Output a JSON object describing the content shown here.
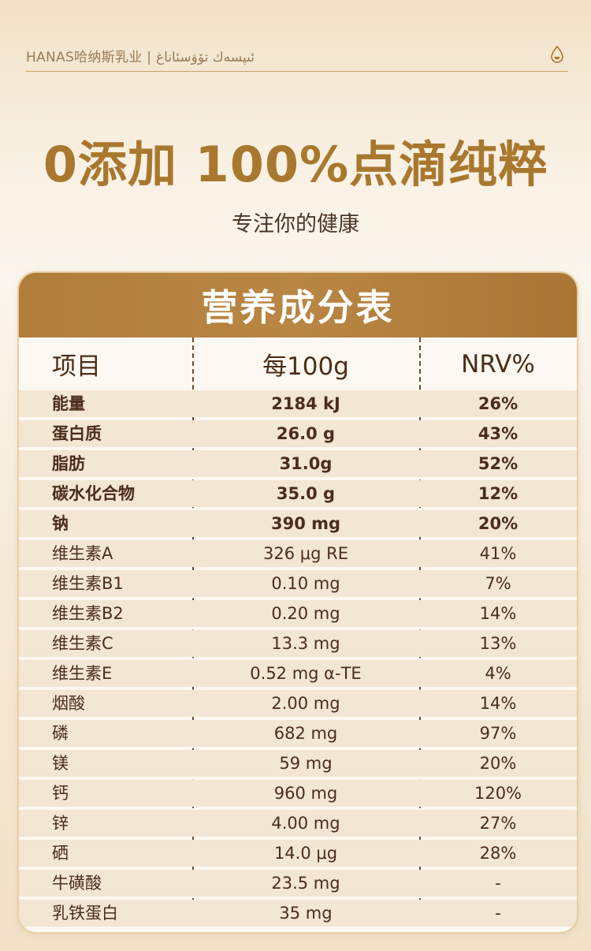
{
  "brand": {
    "text": "HANAS哈纳斯乳业 | ئىپسەك تۆۋسئاناغ",
    "icon": "milk-drop-icon"
  },
  "headline": "0添加 100%点滴纯粹",
  "subtitle": "专注你的健康",
  "table": {
    "title": "营养成分表",
    "headers": [
      "项目",
      "每100g",
      "NRV%"
    ],
    "rows": [
      {
        "item": "能量",
        "per100g": "2184 kJ",
        "nrv": "26%",
        "bold": true
      },
      {
        "item": "蛋白质",
        "per100g": "26.0 g",
        "nrv": "43%",
        "bold": true
      },
      {
        "item": "脂肪",
        "per100g": "31.0g",
        "nrv": "52%",
        "bold": true
      },
      {
        "item": "碳水化合物",
        "per100g": "35.0 g",
        "nrv": "12%",
        "bold": true
      },
      {
        "item": "钠",
        "per100g": "390 mg",
        "nrv": "20%",
        "bold": true
      },
      {
        "item": "维生素A",
        "per100g": "326 μg RE",
        "nrv": "41%",
        "bold": false
      },
      {
        "item": "维生素B1",
        "per100g": "0.10 mg",
        "nrv": "7%",
        "bold": false
      },
      {
        "item": "维生素B2",
        "per100g": "0.20 mg",
        "nrv": "14%",
        "bold": false
      },
      {
        "item": "维生素C",
        "per100g": "13.3 mg",
        "nrv": "13%",
        "bold": false
      },
      {
        "item": "维生素E",
        "per100g": "0.52 mg α-TE",
        "nrv": "4%",
        "bold": false
      },
      {
        "item": "烟酸",
        "per100g": "2.00 mg",
        "nrv": "14%",
        "bold": false
      },
      {
        "item": "磷",
        "per100g": "682 mg",
        "nrv": "97%",
        "bold": false
      },
      {
        "item": "镁",
        "per100g": "59 mg",
        "nrv": "20%",
        "bold": false
      },
      {
        "item": "钙",
        "per100g": "960 mg",
        "nrv": "120%",
        "bold": false
      },
      {
        "item": "锌",
        "per100g": "4.00 mg",
        "nrv": "27%",
        "bold": false
      },
      {
        "item": "硒",
        "per100g": "14.0 μg",
        "nrv": "28%",
        "bold": false
      },
      {
        "item": "牛磺酸",
        "per100g": "23.5 mg",
        "nrv": "-",
        "bold": false
      },
      {
        "item": "乳铁蛋白",
        "per100g": "35 mg",
        "nrv": "-",
        "bold": false
      }
    ]
  }
}
